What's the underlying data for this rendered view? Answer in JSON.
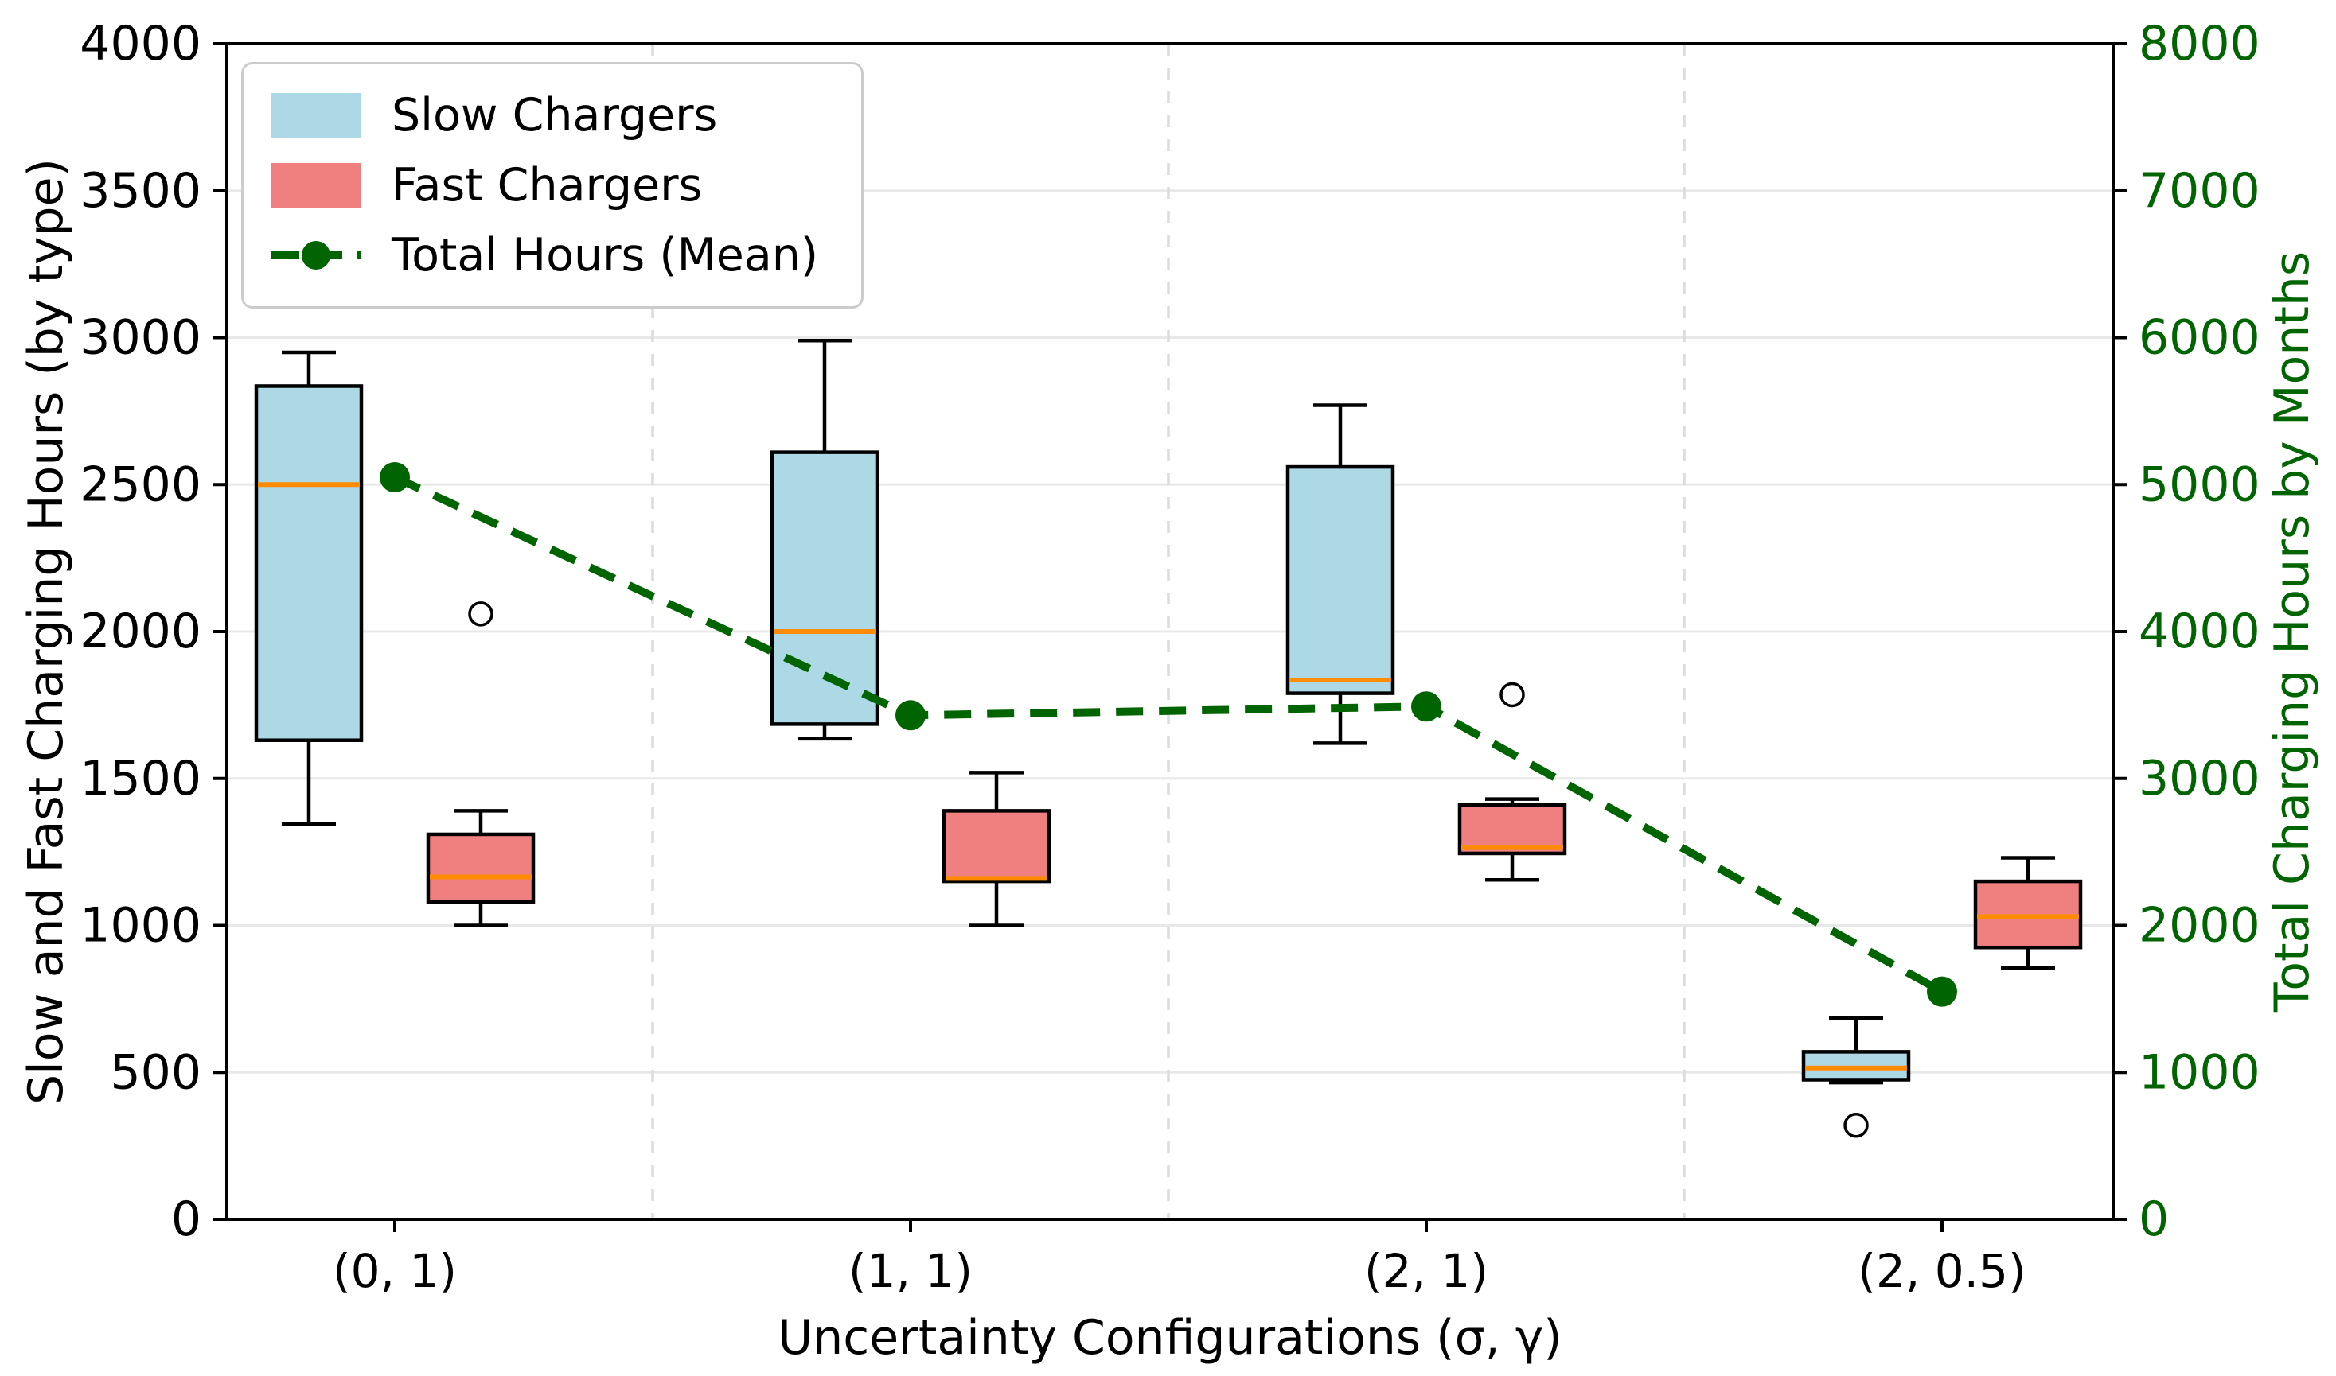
{
  "colors": {
    "background": "#FFFFFF",
    "slow_fill": "#ADD8E6",
    "fast_fill": "#F08080",
    "median": "#FF8C00",
    "total_line": "#006400",
    "box_edge": "#000000",
    "grid": "#E8E8E8",
    "separator": "#DCDCDC",
    "axis_left_text": "#000000",
    "axis_right_text": "#006400",
    "legend_border": "#CCCCCC"
  },
  "chart_data": {
    "type": "boxplot+line",
    "title": "",
    "xlabel": "Uncertainty Configurations (σ, γ)",
    "ylabel_left": "Slow and Fast Charging Hours (by type)",
    "ylabel_right": "Total Charging Hours by Months",
    "categories": [
      "(0, 1)",
      "(1, 1)",
      "(2, 1)",
      "(2, 0.5)"
    ],
    "left_axis": {
      "min": 0,
      "max": 4000,
      "step": 500,
      "ticks": [
        0,
        500,
        1000,
        1500,
        2000,
        2500,
        3000,
        3500,
        4000
      ]
    },
    "right_axis": {
      "min": 0,
      "max": 8000,
      "step": 1000,
      "ticks": [
        0,
        1000,
        2000,
        3000,
        4000,
        5000,
        6000,
        7000,
        8000
      ]
    },
    "grid": {
      "horizontal": true,
      "vertical_separators": "dashed"
    },
    "legend_position": "upper left",
    "series": [
      {
        "name": "Slow Chargers",
        "type": "box",
        "axis": "left",
        "boxes": [
          {
            "whisker_low": 1345,
            "q1": 1630,
            "median": 2500,
            "q3": 2835,
            "whisker_high": 2950,
            "outliers": []
          },
          {
            "whisker_low": 1635,
            "q1": 1685,
            "median": 2000,
            "q3": 2610,
            "whisker_high": 2990,
            "outliers": []
          },
          {
            "whisker_low": 1620,
            "q1": 1790,
            "median": 1835,
            "q3": 2560,
            "whisker_high": 2770,
            "outliers": []
          },
          {
            "whisker_low": 465,
            "q1": 475,
            "median": 515,
            "q3": 570,
            "whisker_high": 685,
            "outliers": [
              320
            ]
          }
        ]
      },
      {
        "name": "Fast Chargers",
        "type": "box",
        "axis": "left",
        "boxes": [
          {
            "whisker_low": 1000,
            "q1": 1080,
            "median": 1165,
            "q3": 1310,
            "whisker_high": 1390,
            "outliers": [
              2060
            ]
          },
          {
            "whisker_low": 1000,
            "q1": 1150,
            "median": 1160,
            "q3": 1390,
            "whisker_high": 1520,
            "outliers": []
          },
          {
            "whisker_low": 1155,
            "q1": 1245,
            "median": 1265,
            "q3": 1410,
            "whisker_high": 1430,
            "outliers": [
              1785
            ]
          },
          {
            "whisker_low": 855,
            "q1": 925,
            "median": 1030,
            "q3": 1150,
            "whisker_high": 1230,
            "outliers": []
          }
        ]
      },
      {
        "name": "Total Hours (Mean)",
        "type": "line",
        "axis": "right",
        "values": [
          5050,
          3430,
          3490,
          1550
        ]
      }
    ]
  },
  "legend": {
    "items": [
      {
        "label": "Slow Chargers",
        "sample": "patch"
      },
      {
        "label": "Fast Chargers",
        "sample": "patch"
      },
      {
        "label": "Total Hours (Mean)",
        "sample": "dashed-line-marker"
      }
    ]
  }
}
